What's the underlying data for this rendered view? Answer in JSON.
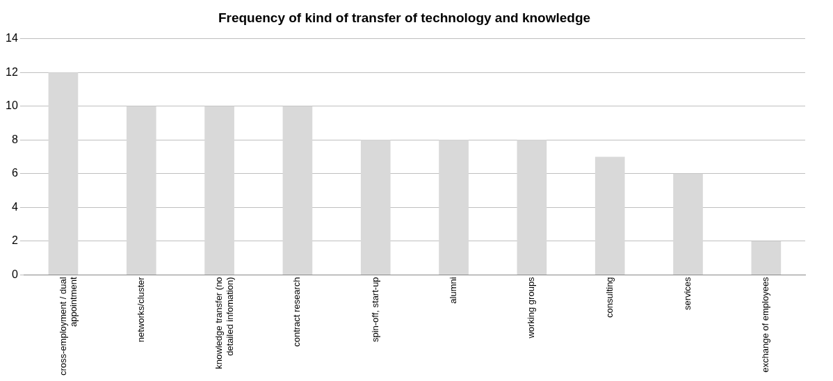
{
  "chart_data": {
    "type": "bar",
    "title": "Frequency of kind of transfer of technology and knowledge",
    "categories": [
      "cross-employment / dual appointment",
      "networks/cluster",
      "knowledge transfer (no detailed infomation)",
      "contract research",
      "spin-off, start-up",
      "alumni",
      "working groups",
      "consulting",
      "services",
      "exchange of employees"
    ],
    "values": [
      12,
      10,
      10,
      10,
      8,
      8,
      8,
      7,
      6,
      2
    ],
    "color": "#d9d9d9",
    "ylim": [
      0,
      14
    ],
    "yticks": [
      0,
      2,
      4,
      6,
      8,
      10,
      12,
      14
    ],
    "grid": "y",
    "legend": false
  }
}
